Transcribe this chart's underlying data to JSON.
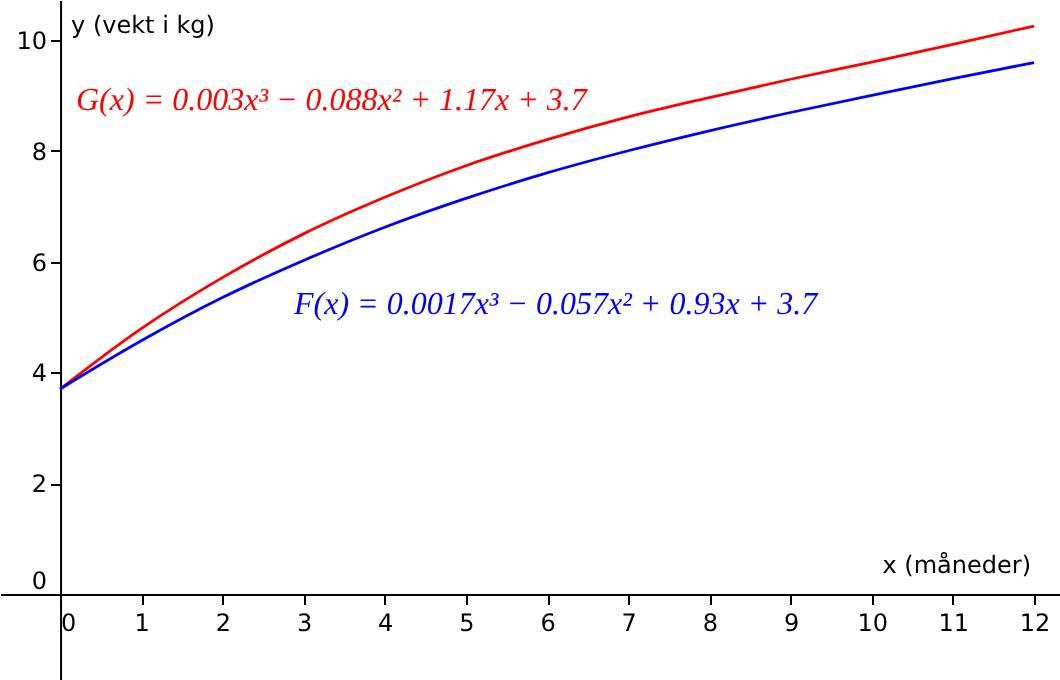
{
  "chart_data": {
    "type": "line",
    "xlabel": "x (måneder)",
    "ylabel": "y (vekt i kg)",
    "x": [
      0,
      1,
      2,
      3,
      4,
      5,
      6,
      7,
      8,
      9,
      10,
      11,
      12
    ],
    "series": [
      {
        "name": "G(x) = 0.003x³ − 0.088x² + 1.17x + 3.7",
        "color": "#ff0000",
        "values": [
          3.7,
          4.79,
          5.71,
          6.5,
          7.16,
          7.73,
          8.2,
          8.61,
          8.96,
          9.29,
          9.6,
          9.92,
          10.25
        ]
      },
      {
        "name": "F(x) = 0.0017x³ − 0.057x² + 0.93x + 3.7",
        "color": "#0000ff",
        "values": [
          3.7,
          4.57,
          5.35,
          6.02,
          6.62,
          7.14,
          7.6,
          8.0,
          8.36,
          8.69,
          9.0,
          9.3,
          9.59
        ]
      }
    ],
    "xlim": [
      -0.74,
      12.32
    ],
    "ylim": [
      -1.55,
      10.72
    ],
    "xticks": [
      0,
      1,
      2,
      3,
      4,
      5,
      6,
      7,
      8,
      9,
      10,
      11,
      12
    ],
    "yticks": [
      0,
      2,
      4,
      6,
      8,
      10
    ],
    "grid": false,
    "legend": false,
    "marker": "none",
    "line_style": "solid"
  }
}
